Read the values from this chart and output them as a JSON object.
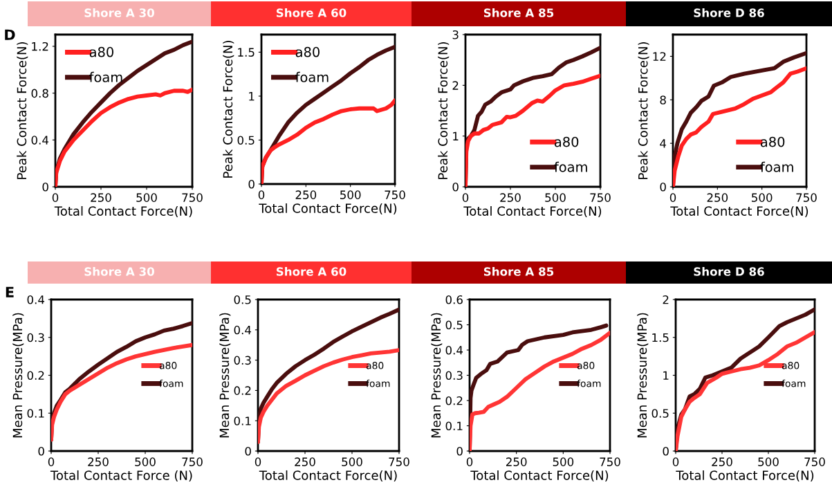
{
  "chart_data": [
    {
      "type": "line",
      "title": "Shore A 30",
      "annotations": [
        "D"
      ],
      "xlabel": "Total Contact Force(N)",
      "ylabel": "Peak Contact Force(N)",
      "xlim": [
        0,
        750
      ],
      "xticks": [
        0,
        250,
        500,
        750
      ],
      "ylim": [
        0,
        1.3
      ],
      "yticks": [
        0,
        0.4,
        0.8,
        1.2
      ],
      "legend": "top left",
      "grid": false,
      "series": [
        {
          "name": "a80",
          "color": "#ff2020",
          "x": [
            0,
            5,
            25,
            50,
            100,
            150,
            200,
            250,
            300,
            350,
            400,
            450,
            500,
            550,
            575,
            600,
            650,
            700,
            725,
            750
          ],
          "values": [
            0,
            0.12,
            0.22,
            0.3,
            0.4,
            0.48,
            0.56,
            0.63,
            0.68,
            0.72,
            0.75,
            0.77,
            0.78,
            0.79,
            0.78,
            0.8,
            0.82,
            0.82,
            0.81,
            0.83
          ]
        },
        {
          "name": "foam",
          "color": "#4a0e0e",
          "x": [
            0,
            5,
            25,
            50,
            100,
            150,
            200,
            250,
            300,
            350,
            400,
            450,
            500,
            550,
            600,
            650,
            700,
            750
          ],
          "values": [
            0,
            0.13,
            0.24,
            0.32,
            0.45,
            0.55,
            0.64,
            0.72,
            0.8,
            0.87,
            0.93,
            0.99,
            1.04,
            1.09,
            1.14,
            1.17,
            1.21,
            1.24
          ]
        }
      ]
    },
    {
      "type": "line",
      "title": "Shore A 60",
      "xlabel": "Total Contact Force(N)",
      "ylabel": "Peak Contact Force(N)",
      "xlim": [
        0,
        750
      ],
      "xticks": [
        0,
        250,
        500,
        750
      ],
      "ylim": [
        0,
        1.7
      ],
      "yticks": [
        0,
        0.5,
        1,
        1.5
      ],
      "legend": "top left",
      "grid": false,
      "series": [
        {
          "name": "a80",
          "color": "#ff2020",
          "x": [
            0,
            5,
            25,
            50,
            75,
            100,
            150,
            200,
            250,
            300,
            350,
            400,
            450,
            500,
            550,
            600,
            630,
            650,
            700,
            730,
            750
          ],
          "values": [
            0,
            0.2,
            0.3,
            0.38,
            0.42,
            0.45,
            0.5,
            0.56,
            0.64,
            0.7,
            0.74,
            0.79,
            0.83,
            0.85,
            0.86,
            0.86,
            0.86,
            0.83,
            0.86,
            0.9,
            0.95
          ]
        },
        {
          "name": "foam",
          "color": "#4a0e0e",
          "x": [
            0,
            5,
            25,
            50,
            100,
            150,
            200,
            250,
            300,
            350,
            400,
            450,
            500,
            550,
            600,
            650,
            700,
            750
          ],
          "values": [
            0,
            0.2,
            0.3,
            0.38,
            0.55,
            0.7,
            0.81,
            0.9,
            0.97,
            1.04,
            1.11,
            1.18,
            1.26,
            1.33,
            1.41,
            1.47,
            1.52,
            1.56
          ]
        }
      ]
    },
    {
      "type": "line",
      "title": "Shore A 85",
      "xlabel": "Total Contact Force(N)",
      "ylabel": "Peak Contact Force(N)",
      "xlim": [
        0,
        750
      ],
      "xticks": [
        0,
        250,
        500,
        750
      ],
      "ylim": [
        0,
        3
      ],
      "yticks": [
        0,
        1,
        2,
        3
      ],
      "legend": "bottom right",
      "grid": false,
      "series": [
        {
          "name": "a80",
          "color": "#ff2020",
          "x": [
            0,
            5,
            15,
            30,
            50,
            75,
            100,
            125,
            150,
            200,
            230,
            250,
            280,
            320,
            370,
            400,
            430,
            470,
            500,
            550,
            600,
            650,
            700,
            750
          ],
          "values": [
            0,
            0.7,
            0.9,
            1.0,
            1.05,
            1.05,
            1.12,
            1.15,
            1.22,
            1.27,
            1.38,
            1.37,
            1.4,
            1.5,
            1.65,
            1.7,
            1.68,
            1.8,
            1.9,
            2.0,
            2.03,
            2.07,
            2.13,
            2.19
          ]
        },
        {
          "name": "foam",
          "color": "#4a0e0e",
          "x": [
            0,
            5,
            15,
            30,
            50,
            70,
            90,
            110,
            140,
            170,
            200,
            250,
            270,
            320,
            380,
            430,
            480,
            520,
            560,
            600,
            650,
            700,
            750
          ],
          "values": [
            0,
            0.8,
            0.95,
            1.0,
            1.12,
            1.4,
            1.48,
            1.62,
            1.68,
            1.78,
            1.86,
            1.92,
            2.0,
            2.08,
            2.15,
            2.18,
            2.22,
            2.35,
            2.45,
            2.5,
            2.57,
            2.65,
            2.74
          ]
        }
      ]
    },
    {
      "type": "line",
      "title": "Shore D 86",
      "xlabel": "Total Contact Force(N)",
      "ylabel": "Peak Contact Force(N)",
      "xlim": [
        0,
        750
      ],
      "xticks": [
        0,
        250,
        500,
        750
      ],
      "ylim": [
        0,
        14
      ],
      "yticks": [
        0,
        4,
        8,
        12
      ],
      "legend": "bottom right",
      "grid": false,
      "series": [
        {
          "name": "a80",
          "color": "#ff2020",
          "x": [
            0,
            10,
            30,
            50,
            75,
            100,
            130,
            160,
            200,
            225,
            275,
            350,
            400,
            450,
            500,
            550,
            580,
            620,
            660,
            700,
            750
          ],
          "values": [
            0,
            1.5,
            2.8,
            3.8,
            4.4,
            4.8,
            5.0,
            5.5,
            6.0,
            6.7,
            6.9,
            7.2,
            7.6,
            8.1,
            8.4,
            8.7,
            9.1,
            9.6,
            10.4,
            10.6,
            10.9
          ]
        },
        {
          "name": "foam",
          "color": "#4a0e0e",
          "x": [
            0,
            10,
            25,
            50,
            75,
            100,
            130,
            160,
            200,
            230,
            275,
            325,
            400,
            500,
            570,
            620,
            680,
            750
          ],
          "values": [
            0,
            2.8,
            4.0,
            5.3,
            6.0,
            6.8,
            7.3,
            7.9,
            8.3,
            9.3,
            9.6,
            10.1,
            10.4,
            10.7,
            10.9,
            11.5,
            11.9,
            12.3
          ]
        }
      ]
    },
    {
      "type": "line",
      "title": "Shore A 30",
      "annotations": [
        "E"
      ],
      "xlabel": "Total Contact Force (N)",
      "ylabel": "Mean Pressure(MPa)",
      "xlim": [
        0,
        750
      ],
      "xticks": [
        0,
        250,
        500,
        750
      ],
      "ylim": [
        0,
        0.4
      ],
      "yticks": [
        0,
        0.1,
        0.2,
        0.3,
        0.4
      ],
      "legend": "right",
      "grid": false,
      "series": [
        {
          "name": "a80",
          "color": "#ff3535",
          "x": [
            0,
            5,
            15,
            30,
            50,
            75,
            100,
            150,
            200,
            250,
            300,
            350,
            400,
            450,
            500,
            550,
            600,
            650,
            700,
            750
          ],
          "values": [
            0.03,
            0.07,
            0.09,
            0.11,
            0.13,
            0.15,
            0.16,
            0.175,
            0.19,
            0.205,
            0.22,
            0.232,
            0.242,
            0.25,
            0.256,
            0.262,
            0.267,
            0.272,
            0.276,
            0.28
          ]
        },
        {
          "name": "foam",
          "color": "#4a0e0e",
          "x": [
            0,
            5,
            15,
            30,
            50,
            75,
            100,
            150,
            200,
            250,
            300,
            350,
            400,
            450,
            500,
            550,
            600,
            650,
            700,
            750
          ],
          "values": [
            0.03,
            0.08,
            0.1,
            0.12,
            0.135,
            0.155,
            0.165,
            0.19,
            0.21,
            0.228,
            0.245,
            0.262,
            0.275,
            0.29,
            0.3,
            0.308,
            0.318,
            0.323,
            0.33,
            0.338
          ]
        }
      ]
    },
    {
      "type": "line",
      "title": "Shore A 60",
      "xlabel": "Total Contact Force(N)",
      "ylabel": "Mean Pressure(MPa)",
      "xlim": [
        0,
        750
      ],
      "xticks": [
        0,
        250,
        500,
        750
      ],
      "ylim": [
        0,
        0.5
      ],
      "yticks": [
        0,
        0.1,
        0.2,
        0.3,
        0.4,
        0.5
      ],
      "legend": "right",
      "grid": false,
      "series": [
        {
          "name": "a80",
          "color": "#ff3535",
          "x": [
            0,
            5,
            15,
            30,
            50,
            75,
            100,
            150,
            200,
            250,
            300,
            350,
            400,
            450,
            500,
            550,
            600,
            650,
            700,
            750
          ],
          "values": [
            0.03,
            0.08,
            0.11,
            0.13,
            0.15,
            0.17,
            0.19,
            0.215,
            0.232,
            0.25,
            0.265,
            0.28,
            0.292,
            0.302,
            0.31,
            0.316,
            0.322,
            0.325,
            0.328,
            0.333
          ]
        },
        {
          "name": "foam",
          "color": "#4a0e0e",
          "x": [
            0,
            5,
            15,
            30,
            50,
            75,
            100,
            150,
            200,
            250,
            300,
            350,
            400,
            450,
            500,
            550,
            600,
            650,
            700,
            750
          ],
          "values": [
            0.03,
            0.1,
            0.14,
            0.16,
            0.18,
            0.205,
            0.225,
            0.255,
            0.28,
            0.3,
            0.318,
            0.338,
            0.36,
            0.378,
            0.395,
            0.41,
            0.425,
            0.44,
            0.453,
            0.467
          ]
        }
      ]
    },
    {
      "type": "line",
      "title": "Shore A 85",
      "xlabel": "Total Contact Force(N)",
      "ylabel": "Mean Pressure(MPa)",
      "xlim": [
        0,
        750
      ],
      "xticks": [
        0,
        250,
        500,
        750
      ],
      "ylim": [
        0,
        0.6
      ],
      "yticks": [
        0,
        0.1,
        0.2,
        0.3,
        0.4,
        0.5,
        0.6
      ],
      "legend": "right",
      "grid": false,
      "series": [
        {
          "name": "a80",
          "color": "#ff3535",
          "x": [
            0,
            5,
            15,
            30,
            50,
            75,
            100,
            130,
            160,
            200,
            250,
            300,
            350,
            400,
            450,
            500,
            550,
            600,
            650,
            700,
            750
          ],
          "values": [
            0,
            0.1,
            0.145,
            0.15,
            0.152,
            0.155,
            0.175,
            0.185,
            0.195,
            0.215,
            0.25,
            0.285,
            0.31,
            0.335,
            0.355,
            0.37,
            0.385,
            0.405,
            0.42,
            0.44,
            0.468
          ]
        },
        {
          "name": "foam",
          "color": "#4a0e0e",
          "x": [
            0,
            5,
            10,
            20,
            35,
            60,
            90,
            110,
            150,
            200,
            260,
            280,
            310,
            400,
            500,
            550,
            650,
            700,
            730
          ],
          "values": [
            0,
            0.21,
            0.24,
            0.26,
            0.29,
            0.305,
            0.32,
            0.345,
            0.355,
            0.39,
            0.4,
            0.42,
            0.435,
            0.45,
            0.46,
            0.47,
            0.48,
            0.49,
            0.497
          ]
        }
      ]
    },
    {
      "type": "line",
      "title": "Shore D 86",
      "xlabel": "Total Contact Force(N)",
      "ylabel": "Mean Pressure(MPa)",
      "xlim": [
        0,
        750
      ],
      "xticks": [
        0,
        250,
        500,
        750
      ],
      "ylim": [
        0,
        2
      ],
      "yticks": [
        0,
        0.5,
        1,
        1.5,
        2
      ],
      "legend": "right",
      "grid": false,
      "series": [
        {
          "name": "a80",
          "color": "#ff3535",
          "x": [
            0,
            10,
            30,
            50,
            75,
            100,
            130,
            170,
            220,
            250,
            300,
            350,
            400,
            450,
            500,
            550,
            600,
            650,
            700,
            750
          ],
          "values": [
            0,
            0.2,
            0.45,
            0.55,
            0.65,
            0.7,
            0.75,
            0.9,
            0.97,
            1.02,
            1.05,
            1.08,
            1.1,
            1.13,
            1.2,
            1.28,
            1.38,
            1.43,
            1.5,
            1.57
          ]
        },
        {
          "name": "foam",
          "color": "#4a0e0e",
          "x": [
            0,
            10,
            30,
            50,
            75,
            100,
            130,
            160,
            200,
            250,
            300,
            350,
            400,
            450,
            500,
            560,
            600,
            650,
            700,
            750
          ],
          "values": [
            0,
            0.3,
            0.48,
            0.55,
            0.72,
            0.75,
            0.82,
            0.97,
            1.0,
            1.05,
            1.1,
            1.22,
            1.3,
            1.38,
            1.5,
            1.65,
            1.7,
            1.75,
            1.8,
            1.87
          ]
        }
      ]
    }
  ]
}
